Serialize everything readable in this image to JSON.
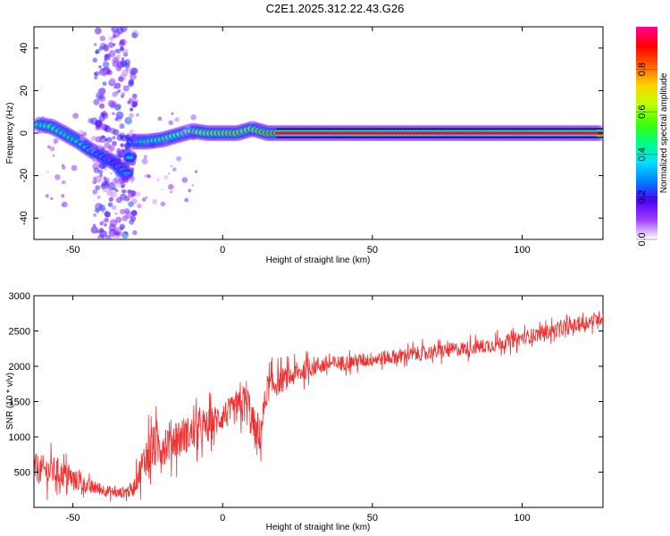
{
  "title": "C2E1.2025.312.22.43.G26",
  "chart_data": [
    {
      "type": "heatmap",
      "xlabel": "Height of straight line (km)",
      "ylabel": "Frequency (Hz)",
      "xlim": [
        -63,
        127
      ],
      "ylim": [
        -50,
        50
      ],
      "xticks": [
        -50,
        0,
        50,
        100
      ],
      "yticks": [
        -40,
        -20,
        0,
        20,
        40
      ],
      "colorbar": {
        "label": "Normalized spectral amplitude",
        "range": [
          0,
          1
        ],
        "ticks": [
          0.0,
          0.2,
          0.4,
          0.6,
          0.8
        ],
        "colors": [
          "#ffffff",
          "#a040ff",
          "#5000ff",
          "#0080ff",
          "#00e0ff",
          "#00ff80",
          "#40ff00",
          "#c0ff00",
          "#ffd000",
          "#ff6000",
          "#ff0000",
          "#ff0090"
        ]
      },
      "ridge": [
        {
          "x": -61,
          "y": 4,
          "amp": 0.5
        },
        {
          "x": -57,
          "y": 3,
          "amp": 0.55
        },
        {
          "x": -53,
          "y": 0,
          "amp": 0.5
        },
        {
          "x": -48,
          "y": -4,
          "amp": 0.45
        },
        {
          "x": -44,
          "y": -8,
          "amp": 0.35
        },
        {
          "x": -40,
          "y": -11,
          "amp": 0.3
        },
        {
          "x": -36,
          "y": -14,
          "amp": 0.3
        },
        {
          "x": -32,
          "y": -19,
          "amp": 0.3
        },
        {
          "x": -30,
          "y": -4,
          "amp": 0.35
        },
        {
          "x": -25,
          "y": -4,
          "amp": 0.5
        },
        {
          "x": -20,
          "y": -3,
          "amp": 0.55
        },
        {
          "x": -15,
          "y": -1,
          "amp": 0.6
        },
        {
          "x": -10,
          "y": 1,
          "amp": 0.65
        },
        {
          "x": -5,
          "y": 0,
          "amp": 0.75
        },
        {
          "x": 5,
          "y": 0,
          "amp": 0.8
        },
        {
          "x": 10,
          "y": 2,
          "amp": 0.75
        },
        {
          "x": 15,
          "y": 0,
          "amp": 0.85
        },
        {
          "x": 20,
          "y": 0,
          "amp": 0.9
        },
        {
          "x": 127,
          "y": 0,
          "amp": 0.95
        }
      ]
    },
    {
      "type": "line",
      "xlabel": "Height of straight line (km)",
      "ylabel": "SNR (10 * v/v)",
      "xlim": [
        -63,
        127
      ],
      "ylim": [
        0,
        3000
      ],
      "xticks": [
        -50,
        0,
        50,
        100
      ],
      "yticks": [
        500,
        1000,
        1500,
        2000,
        2500,
        3000
      ],
      "color": "#f03030",
      "trend": {
        "x": [
          -63,
          -55,
          -45,
          -35,
          -30,
          -25,
          -20,
          -15,
          -10,
          -5,
          0,
          5,
          8,
          10,
          12,
          15,
          20,
          25,
          30,
          40,
          50,
          60,
          70,
          80,
          90,
          100,
          110,
          120,
          127
        ],
        "y": [
          550,
          500,
          300,
          200,
          250,
          800,
          900,
          1000,
          1050,
          1150,
          1300,
          1400,
          1500,
          1200,
          900,
          1700,
          1800,
          1900,
          2000,
          2050,
          2100,
          2150,
          2200,
          2250,
          2300,
          2400,
          2500,
          2600,
          2700
        ],
        "noise": [
          300,
          300,
          150,
          100,
          150,
          450,
          450,
          400,
          350,
          350,
          300,
          300,
          500,
          400,
          400,
          300,
          250,
          200,
          200,
          150,
          150,
          150,
          150,
          150,
          150,
          150,
          150,
          150,
          150
        ]
      }
    }
  ]
}
